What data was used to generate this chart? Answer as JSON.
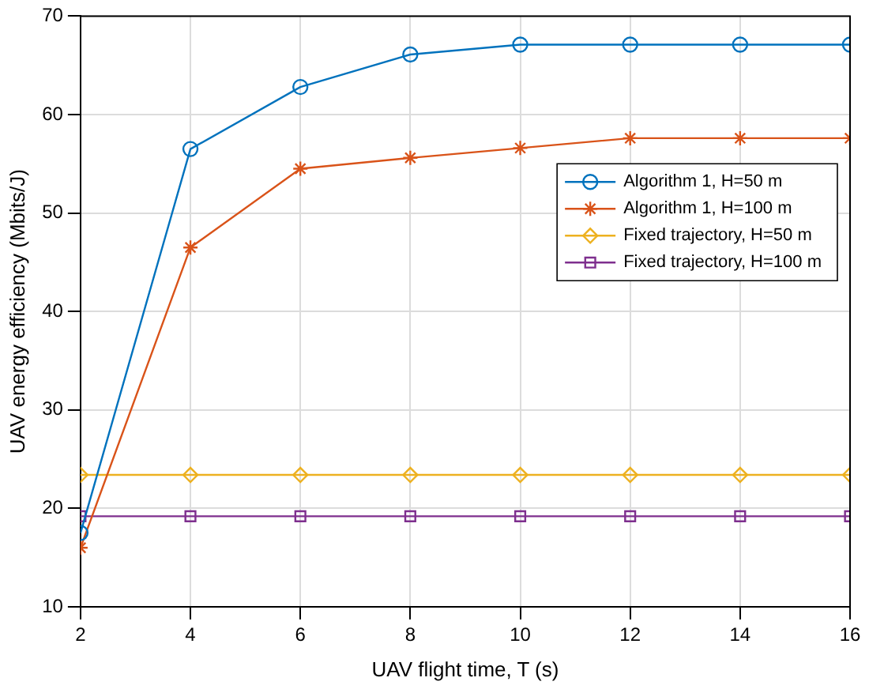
{
  "chart_data": {
    "type": "line",
    "xlabel": "UAV flight time, T (s)",
    "ylabel": "UAV energy efficiency (Mbits/J)",
    "x": [
      2,
      4,
      6,
      8,
      10,
      12,
      14,
      16
    ],
    "xlim": [
      2,
      16
    ],
    "xticks": [
      2,
      4,
      6,
      8,
      10,
      12,
      14,
      16
    ],
    "ylim": [
      10,
      70
    ],
    "yticks": [
      10,
      20,
      30,
      40,
      50,
      60,
      70
    ],
    "grid": true,
    "legend": "top right",
    "line_style": "solid",
    "series": [
      {
        "name": "Algorithm 1, H=50 m",
        "color": "#0072bd",
        "marker": "circle",
        "values": [
          17.5,
          56.5,
          62.8,
          66.1,
          67.1,
          67.1,
          67.1,
          67.1
        ]
      },
      {
        "name": "Algorithm 1, H=100 m",
        "color": "#d95319",
        "marker": "cross",
        "values": [
          16,
          46.5,
          54.5,
          55.6,
          56.6,
          57.6,
          57.6,
          57.6
        ]
      },
      {
        "name": "Fixed trajectory, H=50 m",
        "color": "#edb120",
        "marker": "diamond",
        "values": [
          23.4,
          23.4,
          23.4,
          23.4,
          23.4,
          23.4,
          23.4,
          23.4
        ]
      },
      {
        "name": "Fixed trajectory, H=100 m",
        "color": "#7e2f8e",
        "marker": "square",
        "values": [
          19.2,
          19.2,
          19.2,
          19.2,
          19.2,
          19.2,
          19.2,
          19.2
        ]
      }
    ]
  }
}
